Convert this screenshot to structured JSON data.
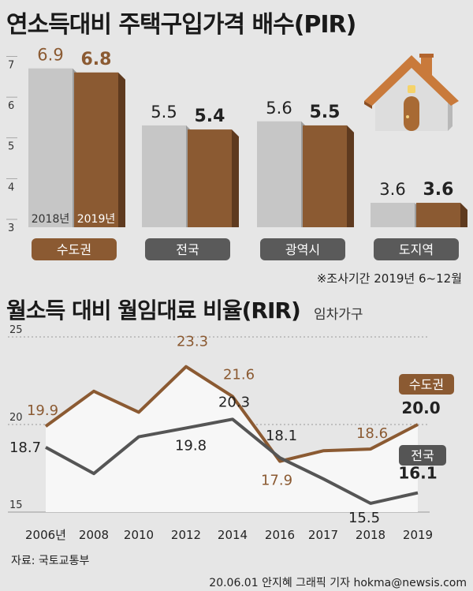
{
  "colors": {
    "gray_bar": "#c6c6c6",
    "brown_bar": "#8b5a32",
    "brown_line": "#8b5a32",
    "gray_line": "#555555",
    "badge_gray": "#5a5a5a"
  },
  "title_pir": "연소득대비 주택구입가격 배수(PIR)",
  "title_rir": "월소득 대비 월임대료 비율(RIR)",
  "title_rir_sub": "임차가구",
  "note": "※조사기간 2019년 6~12월",
  "source": "자료: 국토교통부",
  "credit": "20.06.01 안지혜 그래픽 기자 hokma@newsis.com",
  "chart_data": [
    {
      "type": "bar",
      "categories": [
        "수도권",
        "전국",
        "광역시",
        "도지역"
      ],
      "series": [
        {
          "name": "2018년",
          "values": [
            6.9,
            5.5,
            5.6,
            3.6
          ]
        },
        {
          "name": "2019년",
          "values": [
            6.8,
            5.4,
            5.5,
            3.6
          ]
        }
      ],
      "value_labels": [
        [
          "6.9",
          "5.5",
          "5.6",
          "3.6"
        ],
        [
          "6.8",
          "5.4",
          "5.5",
          "3.6"
        ]
      ],
      "yticks": [
        "3",
        "4",
        "5",
        "6",
        "7"
      ],
      "ylim": [
        3,
        7.3
      ]
    },
    {
      "type": "line",
      "x": [
        "2006년",
        "2008",
        "2010",
        "2012",
        "2014",
        "2016",
        "2017",
        "2018",
        "2019"
      ],
      "series": [
        {
          "name": "수도권",
          "values": [
            19.9,
            21.9,
            20.7,
            23.3,
            21.6,
            17.9,
            18.5,
            18.6,
            20.0
          ],
          "labels": [
            "19.9",
            "",
            "",
            "23.3",
            "21.6",
            "17.9",
            "",
            "18.6",
            "20.0"
          ]
        },
        {
          "name": "전국",
          "values": [
            18.7,
            17.2,
            19.3,
            19.8,
            20.3,
            18.1,
            16.9,
            15.5,
            16.1
          ],
          "labels": [
            "18.7",
            "",
            "",
            "19.8",
            "20.3",
            "18.1",
            "",
            "15.5",
            "16.1"
          ]
        }
      ],
      "yticks": [
        "15",
        "20",
        "25"
      ],
      "ylim": [
        15,
        25
      ]
    }
  ]
}
